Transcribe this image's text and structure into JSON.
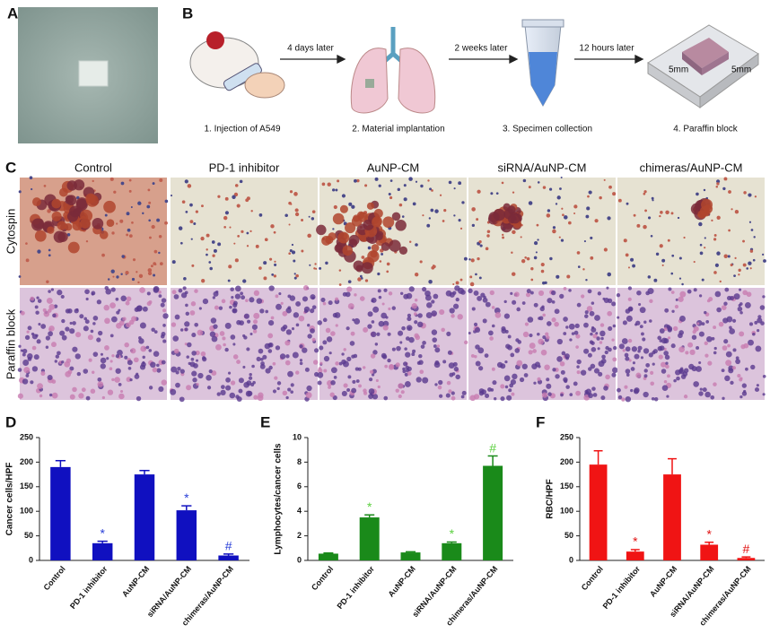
{
  "panel_labels": [
    "A",
    "B",
    "C",
    "D",
    "E",
    "F"
  ],
  "schematic": {
    "arrows": [
      "4 days later",
      "2 weeks later",
      "12 hours later"
    ],
    "steps": [
      "1. Injection of A549",
      "2. Material implantation",
      "3. Specimen collection",
      "4. Paraffin block"
    ],
    "dimensions": [
      "5mm",
      "5mm"
    ]
  },
  "micrographs": {
    "columns": [
      "Control",
      "PD-1 inhibitor",
      "AuNP-CM",
      "siRNA/AuNP-CM",
      "chimeras/AuNP-CM"
    ],
    "rows": [
      "Cytospin",
      "Paraffin block"
    ]
  },
  "chart_data": [
    {
      "type": "bar",
      "y_label": "Cancer cells/HPF",
      "categories": [
        "Control",
        "PD-1 inhibitor",
        "AuNP-CM",
        "siRNA/AuNP-CM",
        "chimeras/AuNP-CM"
      ],
      "values": [
        190,
        35,
        175,
        102,
        10
      ],
      "errors": [
        13,
        4,
        8,
        9,
        3
      ],
      "annotations": [
        null,
        "*",
        null,
        "*",
        "#"
      ],
      "color": "#1010c0",
      "annotation_color": "#2a40d8",
      "ylim": [
        0,
        250
      ],
      "yticks": [
        0,
        50,
        100,
        150,
        200,
        250
      ]
    },
    {
      "type": "bar",
      "y_label": "Lymphocytes/cancer cells",
      "categories": [
        "Control",
        "PD-1 inhibitor",
        "AuNP-CM",
        "siRNA/AuNP-CM",
        "chimeras/AuNP-CM"
      ],
      "values": [
        0.55,
        3.5,
        0.65,
        1.4,
        7.7
      ],
      "errors": [
        0.05,
        0.2,
        0.05,
        0.1,
        0.8
      ],
      "annotations": [
        null,
        "*",
        null,
        "*",
        "#"
      ],
      "color": "#1a8a1a",
      "annotation_color": "#5cd040",
      "ylim": [
        0,
        10
      ],
      "yticks": [
        0,
        2,
        4,
        6,
        8,
        10
      ]
    },
    {
      "type": "bar",
      "y_label": "RBC/HPF",
      "categories": [
        "Control",
        "PD-1 inhibitor",
        "AuNP-CM",
        "siRNA/AuNP-CM",
        "chimeras/AuNP-CM"
      ],
      "values": [
        195,
        18,
        175,
        32,
        5
      ],
      "errors": [
        28,
        4,
        32,
        5,
        2
      ],
      "annotations": [
        null,
        "*",
        null,
        "*",
        "#"
      ],
      "color": "#f01414",
      "annotation_color": "#e01010",
      "ylim": [
        0,
        250
      ],
      "yticks": [
        0,
        50,
        100,
        150,
        200,
        250
      ]
    }
  ]
}
